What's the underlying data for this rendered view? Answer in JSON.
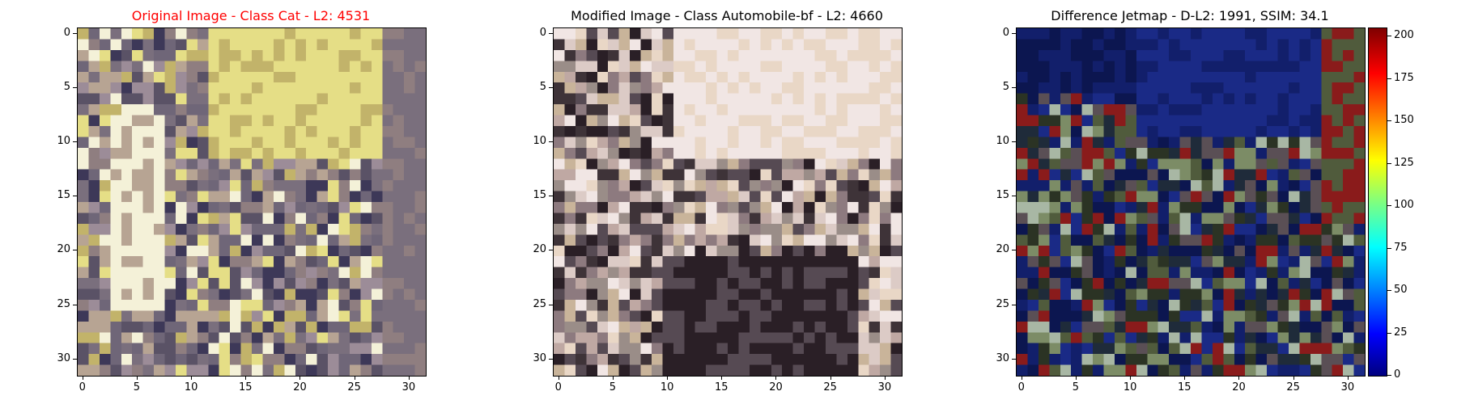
{
  "panels": [
    {
      "id": "original",
      "title": "Original Image - Class Cat - L2: 4531",
      "title_color": "#ff0000",
      "palette": [
        "#c2b36a",
        "#e5de86",
        "#8f7e80",
        "#6f6678",
        "#f4f1d8",
        "#5a5266",
        "#b7a493",
        "#3d3858",
        "#9c8c98",
        "#7a6f7d"
      ]
    },
    {
      "id": "modified",
      "title": "Modified Image - Class Automobile-bf - L2: 4660",
      "title_color": "#000000",
      "palette": [
        "#f1e6e4",
        "#dccbc6",
        "#bfa8a3",
        "#8d7a7f",
        "#564a53",
        "#2a1f26",
        "#c9b49a",
        "#e9d7c6",
        "#9a8d88",
        "#3e3338"
      ]
    },
    {
      "id": "difference",
      "title": "Difference Jetmap - D-L2: 1991, SSIM: 34.1",
      "title_color": "#000000",
      "palette": [
        "#0c1650",
        "#121f6b",
        "#1a2a86",
        "#1f2b3a",
        "#2b3324",
        "#505b3c",
        "#7c8c66",
        "#a8b7a4",
        "#5a4f55",
        "#8a1b1b"
      ]
    }
  ],
  "axis": {
    "y_ticks": [
      "0",
      "5",
      "10",
      "15",
      "20",
      "25",
      "30"
    ],
    "x_ticks": [
      "0",
      "5",
      "10",
      "15",
      "20",
      "25",
      "30"
    ],
    "tick_values": [
      0,
      5,
      10,
      15,
      20,
      25,
      30
    ],
    "pixel_count": 32
  },
  "colorbar": {
    "ticks": [
      "0",
      "25",
      "50",
      "75",
      "100",
      "125",
      "150",
      "175",
      "200"
    ],
    "tick_values": [
      0,
      25,
      50,
      75,
      100,
      125,
      150,
      175,
      200
    ],
    "vmax": 205,
    "colormap": "jet"
  }
}
